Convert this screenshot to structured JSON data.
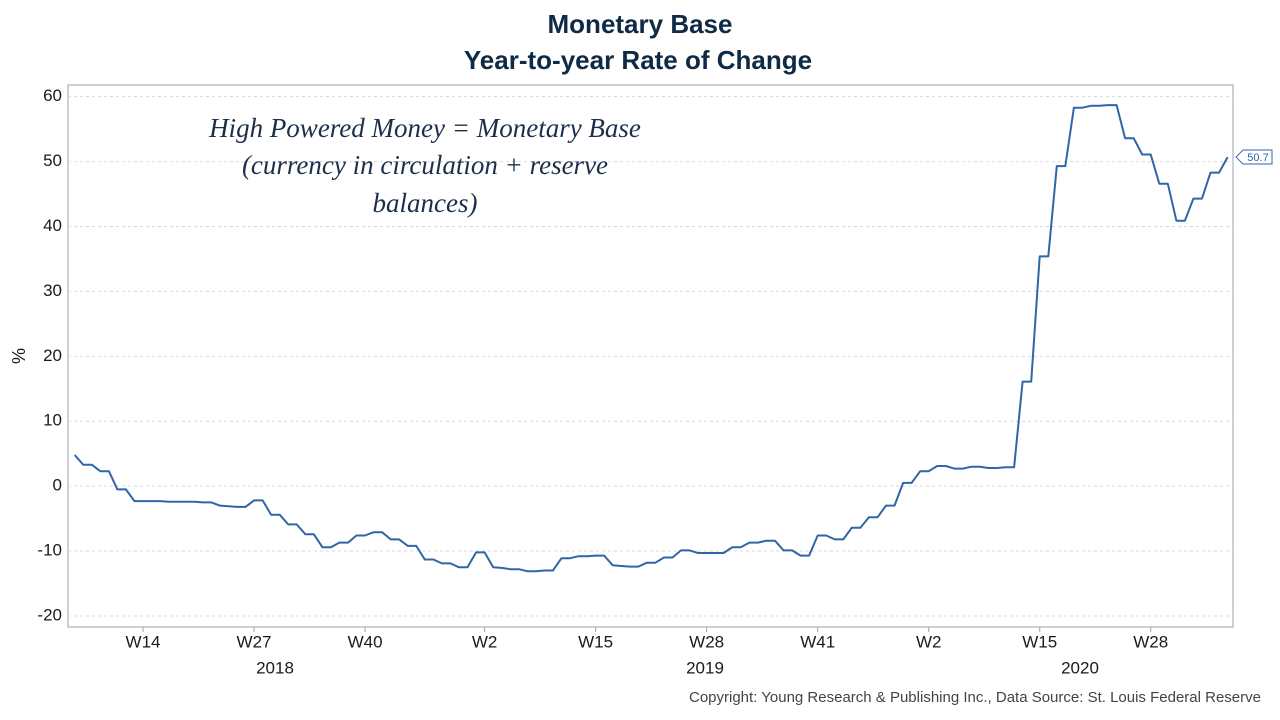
{
  "chart_data": {
    "type": "line",
    "title": [
      "Monetary Base",
      "Year-to-year Rate of Change"
    ],
    "ylabel": "%",
    "annotation": [
      "High Powered Money = Monetary Base",
      "(currency in circulation + reserve",
      "balances)"
    ],
    "source": "Copyright: Young Research & Publishing Inc., Data Source: St. Louis Federal Reserve",
    "year_labels": [
      "2018",
      "2019",
      "2020"
    ],
    "categories": [
      null,
      null,
      null,
      null,
      null,
      null,
      null,
      null,
      "W14",
      null,
      null,
      null,
      null,
      null,
      null,
      null,
      null,
      null,
      null,
      null,
      null,
      "W27",
      null,
      null,
      null,
      null,
      null,
      null,
      null,
      null,
      null,
      null,
      null,
      null,
      "W40",
      null,
      null,
      null,
      null,
      null,
      null,
      null,
      null,
      null,
      null,
      null,
      null,
      null,
      "W2",
      null,
      null,
      null,
      null,
      null,
      null,
      null,
      null,
      null,
      null,
      null,
      null,
      "W15",
      null,
      null,
      null,
      null,
      null,
      null,
      null,
      null,
      null,
      null,
      null,
      null,
      "W28",
      null,
      null,
      null,
      null,
      null,
      null,
      null,
      null,
      null,
      null,
      null,
      null,
      "W41",
      null,
      null,
      null,
      null,
      null,
      null,
      null,
      null,
      null,
      null,
      null,
      null,
      "W2",
      null,
      null,
      null,
      null,
      null,
      null,
      null,
      null,
      null,
      null,
      null,
      null,
      "W15",
      null,
      null,
      null,
      null,
      null,
      null,
      null,
      null,
      null,
      null,
      null,
      null,
      "W28",
      null,
      null,
      null,
      null,
      null,
      null,
      null,
      null,
      null
    ],
    "series": [
      {
        "name": "Monetary Base",
        "color": "#2f66a8",
        "values": [
          4.8,
          3.3,
          3.3,
          2.3,
          2.3,
          -0.5,
          -0.5,
          -2.3,
          -2.3,
          -2.3,
          -2.3,
          -2.4,
          -2.4,
          -2.4,
          -2.4,
          -2.5,
          -2.5,
          -3.0,
          -3.1,
          -3.2,
          -3.2,
          -2.2,
          -2.2,
          -4.4,
          -4.4,
          -5.9,
          -5.9,
          -7.4,
          -7.4,
          -9.4,
          -9.4,
          -8.7,
          -8.7,
          -7.6,
          -7.6,
          -7.1,
          -7.1,
          -8.2,
          -8.2,
          -9.2,
          -9.2,
          -11.3,
          -11.3,
          -11.9,
          -11.9,
          -12.5,
          -12.5,
          -10.2,
          -10.2,
          -12.5,
          -12.6,
          -12.8,
          -12.8,
          -13.1,
          -13.1,
          -13.0,
          -13.0,
          -11.1,
          -11.1,
          -10.8,
          -10.8,
          -10.7,
          -10.7,
          -12.2,
          -12.3,
          -12.4,
          -12.4,
          -11.8,
          -11.8,
          -11.0,
          -11.0,
          -9.9,
          -9.9,
          -10.3,
          -10.3,
          -10.3,
          -10.3,
          -9.4,
          -9.4,
          -8.7,
          -8.7,
          -8.4,
          -8.4,
          -9.9,
          -9.9,
          -10.7,
          -10.7,
          -7.6,
          -7.6,
          -8.2,
          -8.2,
          -6.4,
          -6.4,
          -4.8,
          -4.8,
          -3.0,
          -3.0,
          0.5,
          0.5,
          2.3,
          2.3,
          3.1,
          3.1,
          2.7,
          2.7,
          3.0,
          3.0,
          2.8,
          2.8,
          2.9,
          2.9,
          16.1,
          16.1,
          35.4,
          35.4,
          49.3,
          49.3,
          58.3,
          58.3,
          58.6,
          58.6,
          58.7,
          58.7,
          53.6,
          53.6,
          51.1,
          51.1,
          46.6,
          46.6,
          40.9,
          40.9,
          44.3,
          44.3,
          48.3,
          48.3,
          50.7
        ]
      }
    ],
    "end_label": "50.7",
    "ylim": [
      -21.7,
      61.8
    ],
    "yticks": [
      -20,
      -10,
      0,
      10,
      20,
      30,
      40,
      50,
      60
    ],
    "grid": true
  }
}
